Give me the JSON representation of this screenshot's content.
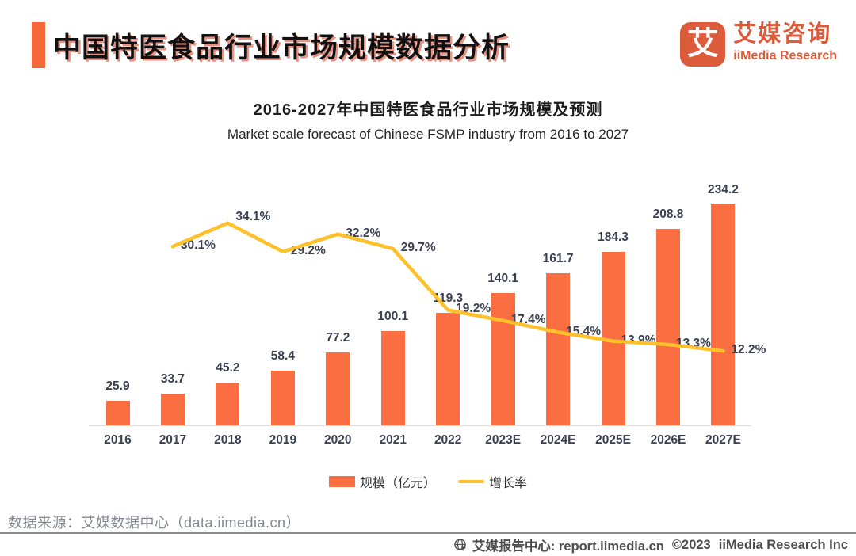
{
  "colors": {
    "accent_bar": "#F4683C",
    "brand": "#DC5B3A",
    "bar": "#FA6E41",
    "line": "#FFC12B"
  },
  "header": {
    "title": "中国特医食品行业市场规模数据分析",
    "logo": {
      "glyph": "艾",
      "name_cn": "艾媒咨询",
      "name_en": "iiMedia Research"
    }
  },
  "chart_data": {
    "type": "bar+line",
    "title": "2016-2027年中国特医食品行业市场规模及预测",
    "subtitle": "Market scale forecast of Chinese FSMP industry from 2016 to 2027",
    "categories": [
      "2016",
      "2017",
      "2018",
      "2019",
      "2020",
      "2021",
      "2022",
      "2023E",
      "2024E",
      "2025E",
      "2026E",
      "2027E"
    ],
    "series": [
      {
        "name": "规模（亿元）",
        "type": "bar",
        "color": "#FA6E41",
        "values": [
          25.9,
          33.7,
          45.2,
          58.4,
          77.2,
          100.1,
          119.3,
          140.1,
          161.7,
          184.3,
          208.8,
          234.2
        ]
      },
      {
        "name": "增长率",
        "type": "line",
        "color": "#FFC12B",
        "unit": "%",
        "values": [
          null,
          30.1,
          34.1,
          29.2,
          32.2,
          29.7,
          19.2,
          17.4,
          15.4,
          13.9,
          13.3,
          12.2
        ]
      }
    ],
    "value_labels": true,
    "grid": false,
    "legend_position": "bottom"
  },
  "source": {
    "text": "数据来源：艾媒数据中心（data.iimedia.cn）"
  },
  "footer": {
    "report_center": "艾媒报告中心: report.iimedia.cn",
    "copyright": "©2023",
    "company": "iiMedia Research Inc"
  }
}
